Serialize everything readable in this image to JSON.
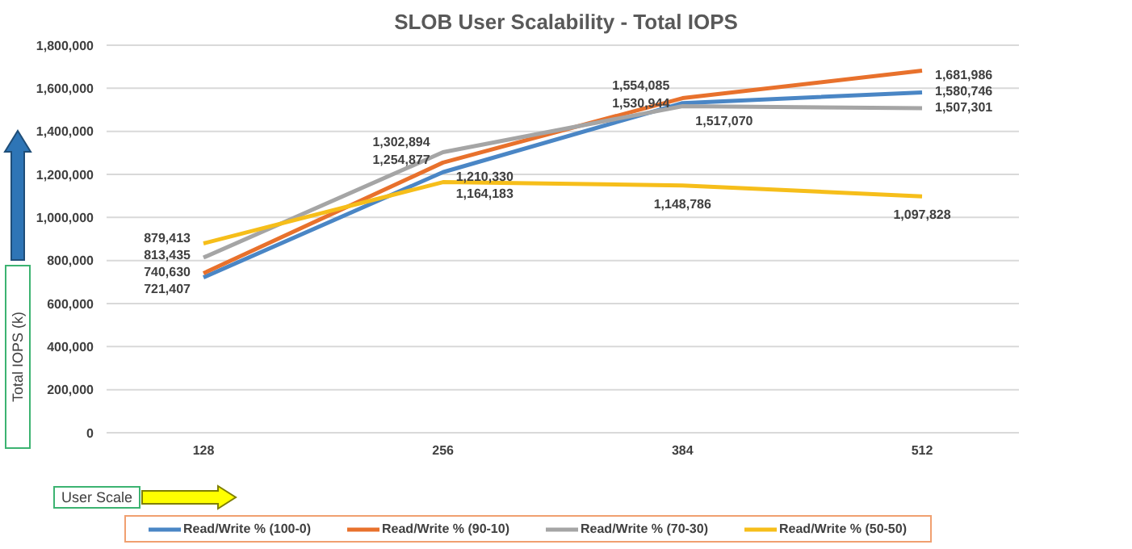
{
  "chart_data": {
    "type": "line",
    "title": "SLOB User Scalability - Total IOPS",
    "xlabel": "User Scale",
    "ylabel": "Total IOPS (k)",
    "categories": [
      "128",
      "256",
      "384",
      "512"
    ],
    "series": [
      {
        "name": "Read/Write % (100-0)",
        "color": "#4a86c5",
        "values": [
          721407,
          1210330,
          1530944,
          1580746
        ],
        "value_labels": [
          "721,407",
          "1,210,330",
          "1,530,944",
          "1,580,746"
        ]
      },
      {
        "name": "Read/Write % (90-10)",
        "color": "#e8712c",
        "values": [
          740630,
          1254877,
          1554085,
          1681986
        ],
        "value_labels": [
          "740,630",
          "1,254,877",
          "1,554,085",
          "1,681,986"
        ]
      },
      {
        "name": "Read/Write % (70-30)",
        "color": "#a5a5a5",
        "values": [
          813435,
          1302894,
          1517070,
          1507301
        ],
        "value_labels": [
          "813,435",
          "1,302,894",
          "1,517,070",
          "1,507,301"
        ]
      },
      {
        "name": "Read/Write % (50-50)",
        "color": "#f6be1a",
        "values": [
          879413,
          1164183,
          1148786,
          1097828
        ],
        "value_labels": [
          "879,413",
          "1,164,183",
          "1,148,786",
          "1,097,828"
        ]
      }
    ],
    "ylim": [
      0,
      1800000
    ],
    "yticks": [
      0,
      {
        "value": 200000,
        "label": "200,000"
      },
      {
        "value": 400000,
        "label": "400,000"
      },
      {
        "value": 600000,
        "label": "600,000"
      },
      {
        "value": 800000,
        "label": "800,000"
      },
      {
        "value": 1000000,
        "label": "1,000,000"
      },
      {
        "value": 1200000,
        "label": "1,200,000"
      },
      {
        "value": 1400000,
        "label": "1,400,000"
      },
      {
        "value": 1600000,
        "label": "1,600,000"
      },
      {
        "value": 1800000,
        "label": "1,800,000"
      }
    ],
    "grid": "y",
    "legend": "bottom",
    "marker": "none",
    "line_style": "solid"
  }
}
